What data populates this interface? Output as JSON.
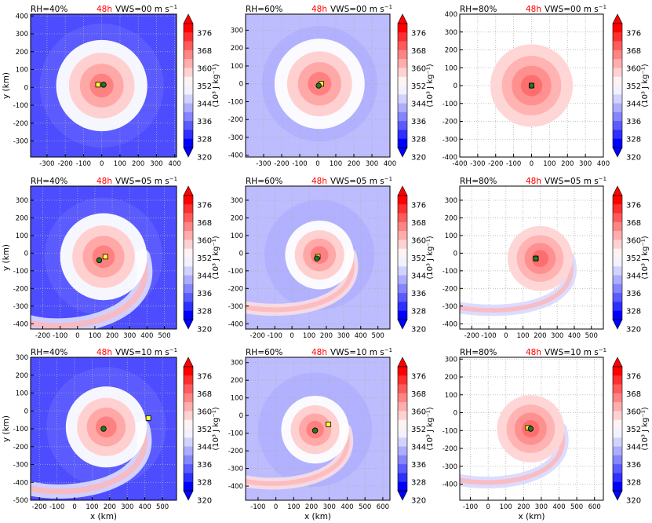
{
  "chart_data": [
    {
      "type": "heatmap",
      "rh": "RH=40%",
      "time": "48h",
      "vws": "VWS=00 m s",
      "xlim": [
        -390,
        410
      ],
      "ylim": [
        -390,
        410
      ],
      "xticks": [
        "-300",
        "-200",
        "-100",
        "0",
        "100",
        "200",
        "300",
        "400"
      ],
      "yticks": [
        "-300",
        "-200",
        "-100",
        "0",
        "100",
        "200",
        "300",
        "400"
      ],
      "xlabel": "",
      "ylabel": "y (km)",
      "background": "blue",
      "vortex": {
        "x": 0,
        "y": 10,
        "radius": 250,
        "spiral": 0
      },
      "marker_yellow": [
        -20,
        15
      ],
      "marker_green": [
        10,
        15
      ]
    },
    {
      "type": "heatmap",
      "rh": "RH=60%",
      "time": "48h",
      "vws": "VWS=00 m s",
      "xlim": [
        -400,
        400
      ],
      "ylim": [
        -410,
        390
      ],
      "xticks": [
        "-300",
        "-200",
        "-100",
        "0",
        "100",
        "200",
        "300",
        "400"
      ],
      "yticks": [
        "-400",
        "-300",
        "-200",
        "-100",
        "0",
        "100",
        "200",
        "300"
      ],
      "xlabel": "",
      "ylabel": "",
      "background": "lightblue",
      "vortex": {
        "x": 10,
        "y": 0,
        "radius": 250,
        "spiral": 0
      },
      "marker_yellow": [
        20,
        0
      ],
      "marker_green": [
        5,
        -10
      ]
    },
    {
      "type": "heatmap",
      "rh": "RH=80%",
      "time": "48h",
      "vws": "VWS=00 m s",
      "xlim": [
        -400,
        400
      ],
      "ylim": [
        -400,
        400
      ],
      "xticks": [
        "-400",
        "-300",
        "-200",
        "-100",
        "0",
        "100",
        "200",
        "300",
        "400"
      ],
      "yticks": [
        "-400",
        "-300",
        "-200",
        "-100",
        "0",
        "100",
        "200",
        "300",
        "400"
      ],
      "xlabel": "",
      "ylabel": "",
      "background": "white",
      "vortex": {
        "x": 0,
        "y": 0,
        "radius": 230,
        "spiral": 0
      },
      "marker_yellow": [
        0,
        0
      ],
      "marker_green": [
        0,
        0
      ]
    },
    {
      "type": "heatmap",
      "rh": "RH=40%",
      "time": "48h",
      "vws": "VWS=05 m s",
      "xlim": [
        -270,
        570
      ],
      "ylim": [
        -430,
        380
      ],
      "xticks": [
        "-200",
        "-100",
        "0",
        "100",
        "200",
        "300",
        "400",
        "500"
      ],
      "yticks": [
        "-400",
        "-300",
        "-200",
        "-100",
        "0",
        "100",
        "200",
        "300"
      ],
      "xlabel": "",
      "ylabel": "y (km)",
      "background": "blue",
      "vortex": {
        "x": 150,
        "y": -20,
        "radius": 250,
        "spiral": 1
      },
      "marker_yellow": [
        160,
        -20
      ],
      "marker_green": [
        125,
        -40
      ]
    },
    {
      "type": "heatmap",
      "rh": "RH=60%",
      "time": "48h",
      "vws": "VWS=05 m s",
      "xlim": [
        -270,
        570
      ],
      "ylim": [
        -430,
        380
      ],
      "xticks": [
        "-200",
        "-100",
        "0",
        "100",
        "200",
        "300",
        "400",
        "500"
      ],
      "yticks": [
        "-400",
        "-300",
        "-200",
        "-100",
        "0",
        "100",
        "200",
        "300"
      ],
      "xlabel": "",
      "ylabel": "",
      "background": "lightblue",
      "vortex": {
        "x": 160,
        "y": -10,
        "radius": 200,
        "spiral": 1
      },
      "marker_yellow": [
        150,
        -20
      ],
      "marker_green": [
        145,
        -30
      ]
    },
    {
      "type": "heatmap",
      "rh": "RH=80%",
      "time": "48h",
      "vws": "VWS=05 m s",
      "xlim": [
        -270,
        570
      ],
      "ylim": [
        -430,
        380
      ],
      "xticks": [
        "-200",
        "-100",
        "0",
        "100",
        "200",
        "300",
        "400",
        "500"
      ],
      "yticks": [
        "-400",
        "-300",
        "-200",
        "-100",
        "0",
        "100",
        "200",
        "300"
      ],
      "xlabel": "",
      "ylabel": "",
      "background": "white",
      "vortex": {
        "x": 200,
        "y": -30,
        "radius": 190,
        "spiral": 1
      },
      "marker_yellow": [
        175,
        -30
      ],
      "marker_green": [
        175,
        -30
      ]
    },
    {
      "type": "heatmap",
      "rh": "RH=40%",
      "time": "48h",
      "vws": "VWS=10 m s",
      "xlim": [
        -250,
        580
      ],
      "ylim": [
        -500,
        300
      ],
      "xticks": [
        "-200",
        "-100",
        "0",
        "100",
        "200",
        "300",
        "400",
        "500"
      ],
      "yticks": [
        "-500",
        "-400",
        "-300",
        "-200",
        "-100",
        "0",
        "100",
        "200",
        "300"
      ],
      "xlabel": "x (km)",
      "ylabel": "y (km)",
      "background": "blue",
      "vortex": {
        "x": 180,
        "y": -90,
        "radius": 230,
        "spiral": 1
      },
      "marker_yellow": [
        420,
        -40
      ],
      "marker_green": [
        165,
        -100
      ]
    },
    {
      "type": "heatmap",
      "rh": "RH=60%",
      "time": "48h",
      "vws": "VWS=10 m s",
      "xlim": [
        -170,
        640
      ],
      "ylim": [
        -480,
        330
      ],
      "xticks": [
        "-100",
        "0",
        "100",
        "200",
        "300",
        "400",
        "500",
        "600"
      ],
      "yticks": [
        "-400",
        "-300",
        "-200",
        "-100",
        "0",
        "100",
        "200",
        "300"
      ],
      "xlabel": "x (km)",
      "ylabel": "",
      "background": "lightblue",
      "vortex": {
        "x": 220,
        "y": -80,
        "radius": 190,
        "spiral": 1
      },
      "marker_yellow": [
        295,
        -50
      ],
      "marker_green": [
        220,
        -85
      ]
    },
    {
      "type": "heatmap",
      "rh": "RH=80%",
      "time": "48h",
      "vws": "VWS=10 m s",
      "xlim": [
        -160,
        650
      ],
      "ylim": [
        -490,
        310
      ],
      "xticks": [
        "-100",
        "0",
        "100",
        "200",
        "300",
        "400",
        "500",
        "600"
      ],
      "yticks": [
        "-400",
        "-300",
        "-200",
        "-100",
        "0",
        "100",
        "200",
        "300"
      ],
      "xlabel": "x (km)",
      "ylabel": "",
      "background": "white",
      "vortex": {
        "x": 240,
        "y": -90,
        "radius": 190,
        "spiral": 1
      },
      "marker_yellow": [
        225,
        -85
      ],
      "marker_green": [
        240,
        -90
      ]
    }
  ],
  "colorbar": {
    "levels": [
      "376",
      "368",
      "360",
      "352",
      "344",
      "336",
      "328",
      "320"
    ],
    "label": "(10³ J kg⁻¹)",
    "colors_high_to_low": [
      "#ff0000",
      "#ff2f2f",
      "#ff5b5b",
      "#ff8585",
      "#ffadad",
      "#ffd2d2",
      "#fff2f2",
      "#f2f2ff",
      "#d2d2ff",
      "#adadff",
      "#8585ff",
      "#5b5bff",
      "#2f2fff",
      "#0000ff"
    ],
    "tip_high": "#ff0000",
    "tip_low": "#0000ff"
  },
  "colors": {
    "yellow_marker": "#ffff33",
    "green_marker": "#1f7a1f",
    "time_label": "#ff0000"
  }
}
